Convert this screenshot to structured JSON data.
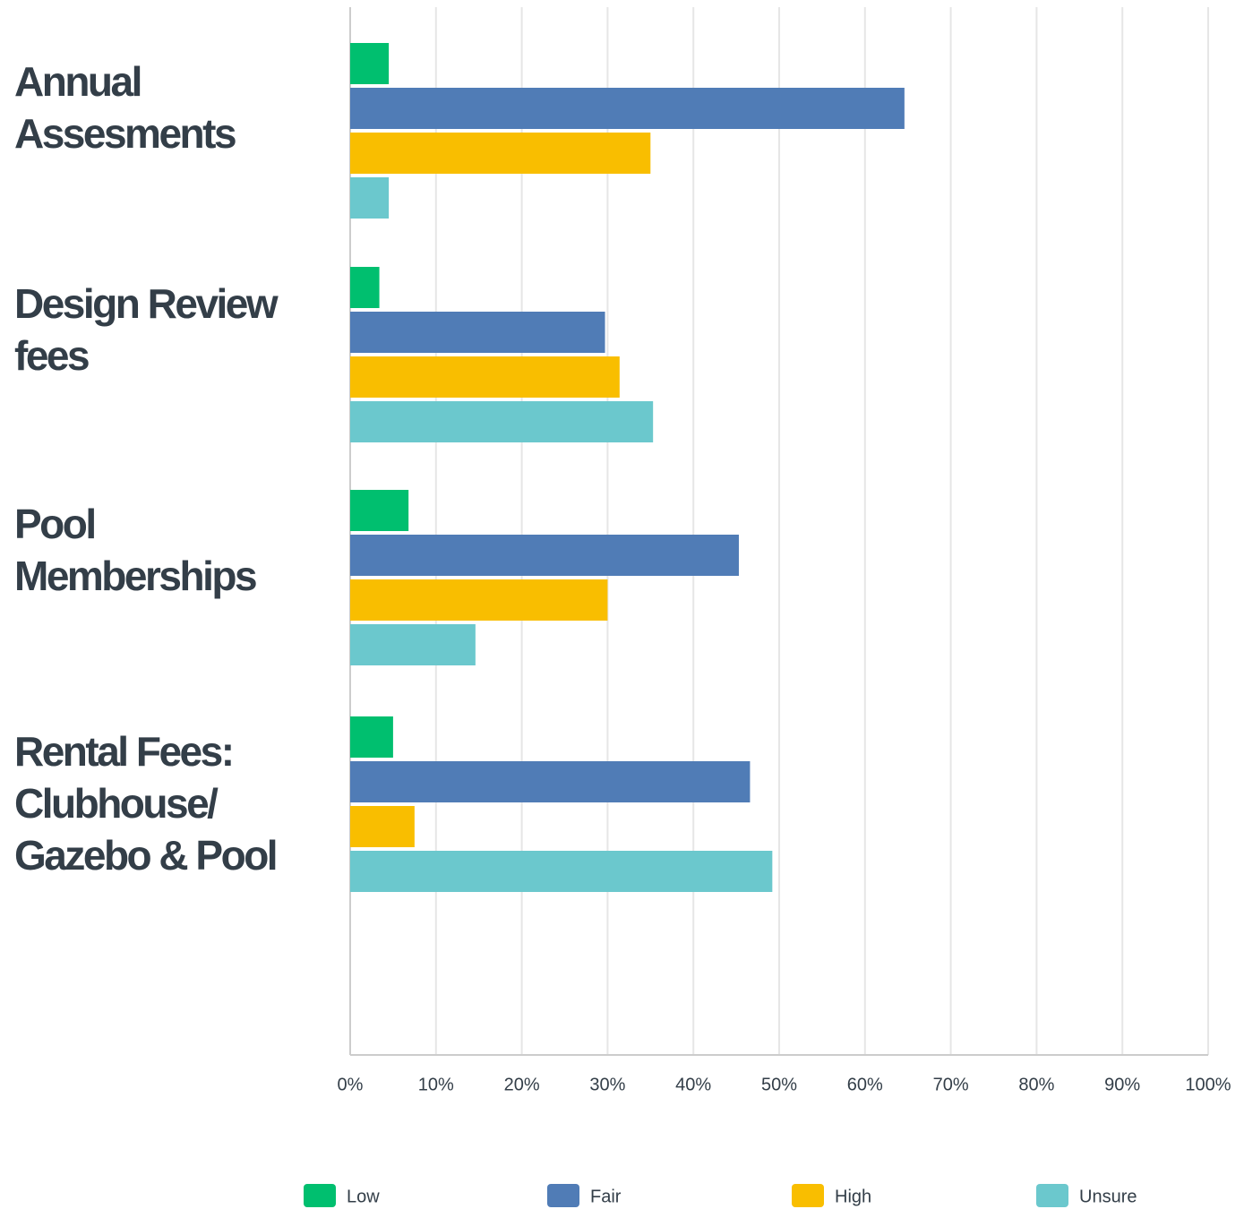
{
  "chart_data": {
    "type": "hbar",
    "categories": [
      "Annual Assesments",
      "Design Review fees",
      "Pool Memberships",
      "Rental Fees: Clubhouse/ Gazebo & Pool"
    ],
    "series": [
      {
        "name": "Low",
        "color": "#00bf6f",
        "values": [
          4.5,
          3.4,
          6.8,
          5
        ]
      },
      {
        "name": "Fair",
        "color": "#507cb6",
        "values": [
          64.6,
          29.7,
          45.3,
          46.6
        ]
      },
      {
        "name": "High",
        "color": "#f9be00",
        "values": [
          35,
          31.4,
          30,
          7.5
        ]
      },
      {
        "name": "Unsure",
        "color": "#6bc8cd",
        "values": [
          4.5,
          35.3,
          14.6,
          49.2
        ]
      }
    ],
    "xlim": [
      0,
      100
    ],
    "xticks": [
      {
        "value": 0,
        "label": "0%"
      },
      {
        "value": 10,
        "label": "10%"
      },
      {
        "value": 20,
        "label": "20%"
      },
      {
        "value": 30,
        "label": "30%"
      },
      {
        "value": 40,
        "label": "40%"
      },
      {
        "value": 50,
        "label": "50%"
      },
      {
        "value": 60,
        "label": "60%"
      },
      {
        "value": 70,
        "label": "70%"
      },
      {
        "value": 80,
        "label": "80%"
      },
      {
        "value": 90,
        "label": "90%"
      },
      {
        "value": 100,
        "label": "100%"
      }
    ],
    "grid": true
  }
}
